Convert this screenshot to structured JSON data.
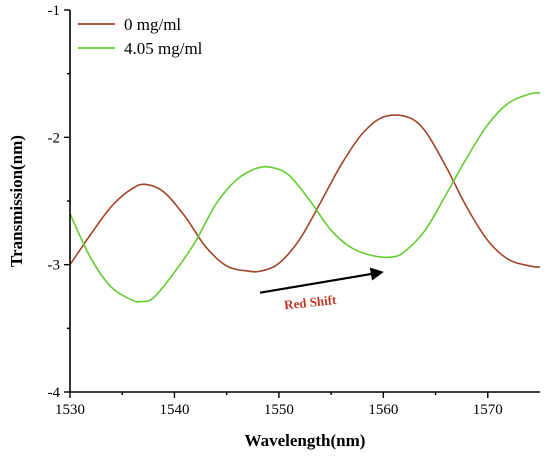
{
  "chart_data": {
    "type": "line",
    "title": "",
    "xlabel": "Wavelength(nm)",
    "ylabel": "Transmission(nm)",
    "xlim": [
      1530,
      1575
    ],
    "ylim": [
      -4,
      -1
    ],
    "xticks": [
      1530,
      1540,
      1550,
      1560,
      1570
    ],
    "yticks": [
      -4,
      -3,
      -2,
      -1
    ],
    "legend_position": "top-left",
    "series": [
      {
        "name": "0 mg/ml",
        "color": "#a0442a",
        "x": [
          1530,
          1532,
          1534,
          1536,
          1537.3,
          1539,
          1541,
          1543,
          1545,
          1547,
          1548.3,
          1550,
          1552,
          1554,
          1556,
          1558,
          1560,
          1562.3,
          1564,
          1566,
          1568,
          1570,
          1572,
          1574,
          1575
        ],
        "y": [
          -3.0,
          -2.76,
          -2.54,
          -2.4,
          -2.37,
          -2.43,
          -2.62,
          -2.86,
          -3.01,
          -3.05,
          -3.05,
          -2.99,
          -2.8,
          -2.51,
          -2.21,
          -1.97,
          -1.84,
          -1.84,
          -1.95,
          -2.23,
          -2.55,
          -2.81,
          -2.96,
          -3.01,
          -3.02
        ]
      },
      {
        "name": "4.05 mg/ml",
        "color": "#66cc33",
        "x": [
          1530,
          1532,
          1534,
          1536,
          1536.8,
          1538,
          1540,
          1542,
          1544,
          1546,
          1548,
          1549.5,
          1551,
          1553,
          1555,
          1557,
          1559,
          1560.8,
          1562,
          1564,
          1566,
          1568,
          1570,
          1572,
          1574,
          1575
        ],
        "y": [
          -2.6,
          -2.95,
          -3.18,
          -3.28,
          -3.29,
          -3.26,
          -3.06,
          -2.82,
          -2.52,
          -2.33,
          -2.24,
          -2.24,
          -2.3,
          -2.5,
          -2.73,
          -2.87,
          -2.93,
          -2.94,
          -2.9,
          -2.73,
          -2.45,
          -2.16,
          -1.9,
          -1.73,
          -1.66,
          -1.65
        ]
      }
    ],
    "annotations": [
      {
        "text": "Red Shift",
        "arrow_from": [
          1548.2,
          -3.22
        ],
        "arrow_to": [
          1559.8,
          -3.06
        ]
      }
    ]
  }
}
